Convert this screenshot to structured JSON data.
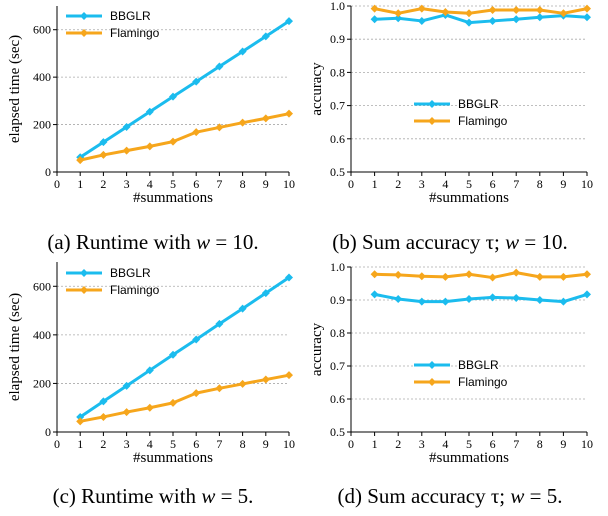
{
  "colors": {
    "bbglr": "#1bbcee",
    "flamingo": "#f6a61c",
    "grid": "#aaaaaa",
    "axis": "#000000"
  },
  "legend_icons": [
    "diamond-line-marker"
  ],
  "charts": [
    {
      "caption_pre": "(a) Runtime with ",
      "caption_var": "w",
      "caption_post": " = 10."
    },
    {
      "caption_pre": "(b) Sum accuracy τ; ",
      "caption_var": "w",
      "caption_post": " = 10."
    },
    {
      "caption_pre": "(c) Runtime with ",
      "caption_var": "w",
      "caption_post": " = 5."
    },
    {
      "caption_pre": "(d) Sum accuracy τ; ",
      "caption_var": "w",
      "caption_post": " = 5."
    }
  ],
  "chart_data": [
    {
      "type": "line",
      "xlabel": "#summations",
      "ylabel": "elapsed time (sec)",
      "xlim": [
        0,
        10
      ],
      "ylim": [
        0,
        700
      ],
      "xticks": [
        0,
        1,
        2,
        3,
        4,
        5,
        6,
        7,
        8,
        9,
        10
      ],
      "yticks": [
        0,
        200,
        400,
        600
      ],
      "grid": "horizontal",
      "legend_position": "top-left",
      "x": [
        1,
        2,
        3,
        4,
        5,
        6,
        7,
        8,
        9,
        10
      ],
      "series": [
        {
          "name": "BBGLR",
          "values": [
            62,
            126,
            190,
            254,
            318,
            381,
            445,
            508,
            572,
            636
          ]
        },
        {
          "name": "Flamingo",
          "values": [
            50,
            72,
            90,
            108,
            128,
            168,
            188,
            208,
            226,
            246
          ]
        }
      ]
    },
    {
      "type": "line",
      "xlabel": "#summations",
      "ylabel": "accuracy",
      "xlim": [
        0,
        10
      ],
      "ylim": [
        0.5,
        1.0
      ],
      "xticks": [
        0,
        1,
        2,
        3,
        4,
        5,
        6,
        7,
        8,
        9,
        10
      ],
      "yticks": [
        0.5,
        0.6,
        0.7,
        0.8,
        0.9,
        1.0
      ],
      "grid": "horizontal",
      "legend_position": "center",
      "x": [
        1,
        2,
        3,
        4,
        5,
        6,
        7,
        8,
        9,
        10
      ],
      "series": [
        {
          "name": "BBGLR",
          "values": [
            0.96,
            0.963,
            0.955,
            0.973,
            0.95,
            0.955,
            0.96,
            0.966,
            0.971,
            0.966
          ]
        },
        {
          "name": "Flamingo",
          "values": [
            0.992,
            0.978,
            0.992,
            0.982,
            0.978,
            0.988,
            0.988,
            0.988,
            0.978,
            0.992
          ]
        }
      ]
    },
    {
      "type": "line",
      "xlabel": "#summations",
      "ylabel": "elapsed time (sec)",
      "xlim": [
        0,
        10
      ],
      "ylim": [
        0,
        700
      ],
      "xticks": [
        0,
        1,
        2,
        3,
        4,
        5,
        6,
        7,
        8,
        9,
        10
      ],
      "yticks": [
        0,
        200,
        400,
        600
      ],
      "grid": "horizontal",
      "legend_position": "top-left",
      "x": [
        1,
        2,
        3,
        4,
        5,
        6,
        7,
        8,
        9,
        10
      ],
      "series": [
        {
          "name": "BBGLR",
          "values": [
            62,
            126,
            190,
            254,
            318,
            381,
            445,
            508,
            572,
            636
          ]
        },
        {
          "name": "Flamingo",
          "values": [
            44,
            62,
            82,
            100,
            120,
            160,
            180,
            198,
            216,
            234
          ]
        }
      ]
    },
    {
      "type": "line",
      "xlabel": "#summations",
      "ylabel": "accuracy",
      "xlim": [
        0,
        10
      ],
      "ylim": [
        0.5,
        1.0
      ],
      "xticks": [
        0,
        1,
        2,
        3,
        4,
        5,
        6,
        7,
        8,
        9,
        10
      ],
      "yticks": [
        0.5,
        0.6,
        0.7,
        0.8,
        0.9,
        1.0
      ],
      "grid": "horizontal",
      "legend_position": "center",
      "x": [
        1,
        2,
        3,
        4,
        5,
        6,
        7,
        8,
        9,
        10
      ],
      "series": [
        {
          "name": "BBGLR",
          "values": [
            0.917,
            0.903,
            0.895,
            0.895,
            0.903,
            0.908,
            0.906,
            0.9,
            0.895,
            0.917
          ]
        },
        {
          "name": "Flamingo",
          "values": [
            0.978,
            0.976,
            0.972,
            0.97,
            0.978,
            0.968,
            0.983,
            0.97,
            0.97,
            0.978
          ]
        }
      ]
    }
  ]
}
